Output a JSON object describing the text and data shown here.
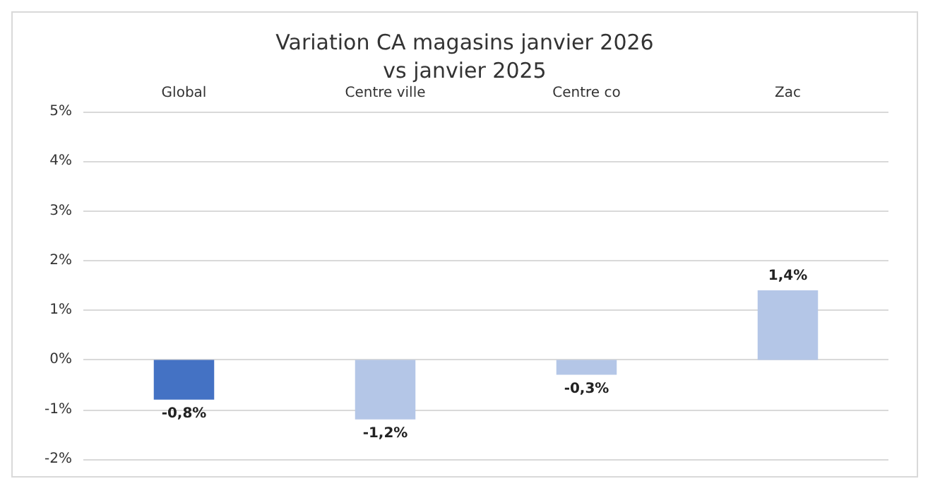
{
  "chart_data": {
    "type": "bar",
    "title": "Variation CA magasins janvier 2026\nvs janvier 2025",
    "categories": [
      "Global",
      "Centre ville",
      "Centre co",
      "Zac"
    ],
    "values": [
      -0.8,
      -1.2,
      -0.3,
      1.4
    ],
    "colors": [
      "#4472c4",
      "#b4c6e7",
      "#b4c6e7",
      "#b4c6e7"
    ],
    "value_labels": [
      "-0,8%",
      "-1,2%",
      "-0,3%",
      "1,4%"
    ],
    "ylim": [
      -2,
      5
    ],
    "yticks": [
      {
        "value": -2,
        "label": "-2%"
      },
      {
        "value": -1,
        "label": "-1%"
      },
      {
        "value": 0,
        "label": "0%"
      },
      {
        "value": 1,
        "label": "1%"
      },
      {
        "value": 2,
        "label": "2%"
      },
      {
        "value": 3,
        "label": "3%"
      },
      {
        "value": 4,
        "label": "4%"
      },
      {
        "value": 5,
        "label": "5%"
      }
    ],
    "grid": "y"
  }
}
